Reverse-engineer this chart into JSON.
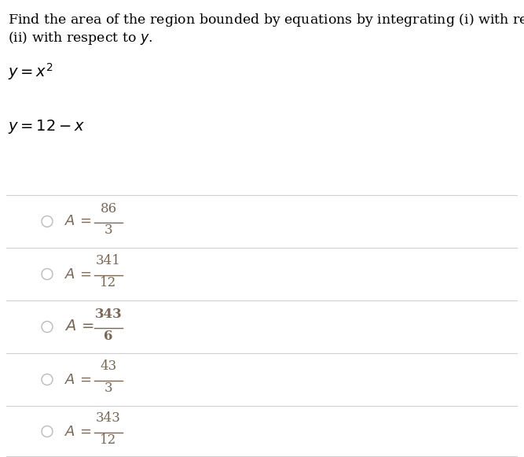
{
  "background_color": "#ffffff",
  "text_color": "#000000",
  "math_color": "#7a6652",
  "separator_color": "#d0d0d0",
  "radio_color": "#bbbbbb",
  "title_line1": "Find the area of the region bounded by equations by integrating (i) with respect to $x$ and",
  "title_line2": "(ii) with respect to $y$.",
  "equation1": "$y = x^2$",
  "equation2": "$y = 12 - x$",
  "options": [
    {
      "numerator": "86",
      "denominator": "3",
      "bold": false
    },
    {
      "numerator": "341",
      "denominator": "12",
      "bold": false
    },
    {
      "numerator": "343",
      "denominator": "6",
      "bold": true
    },
    {
      "numerator": "43",
      "denominator": "3",
      "bold": false
    },
    {
      "numerator": "343",
      "denominator": "12",
      "bold": false
    }
  ],
  "title_fontsize": 12.5,
  "eq_fontsize": 14,
  "option_fontsize": 13,
  "fig_width": 6.67,
  "fig_height": 5.81
}
